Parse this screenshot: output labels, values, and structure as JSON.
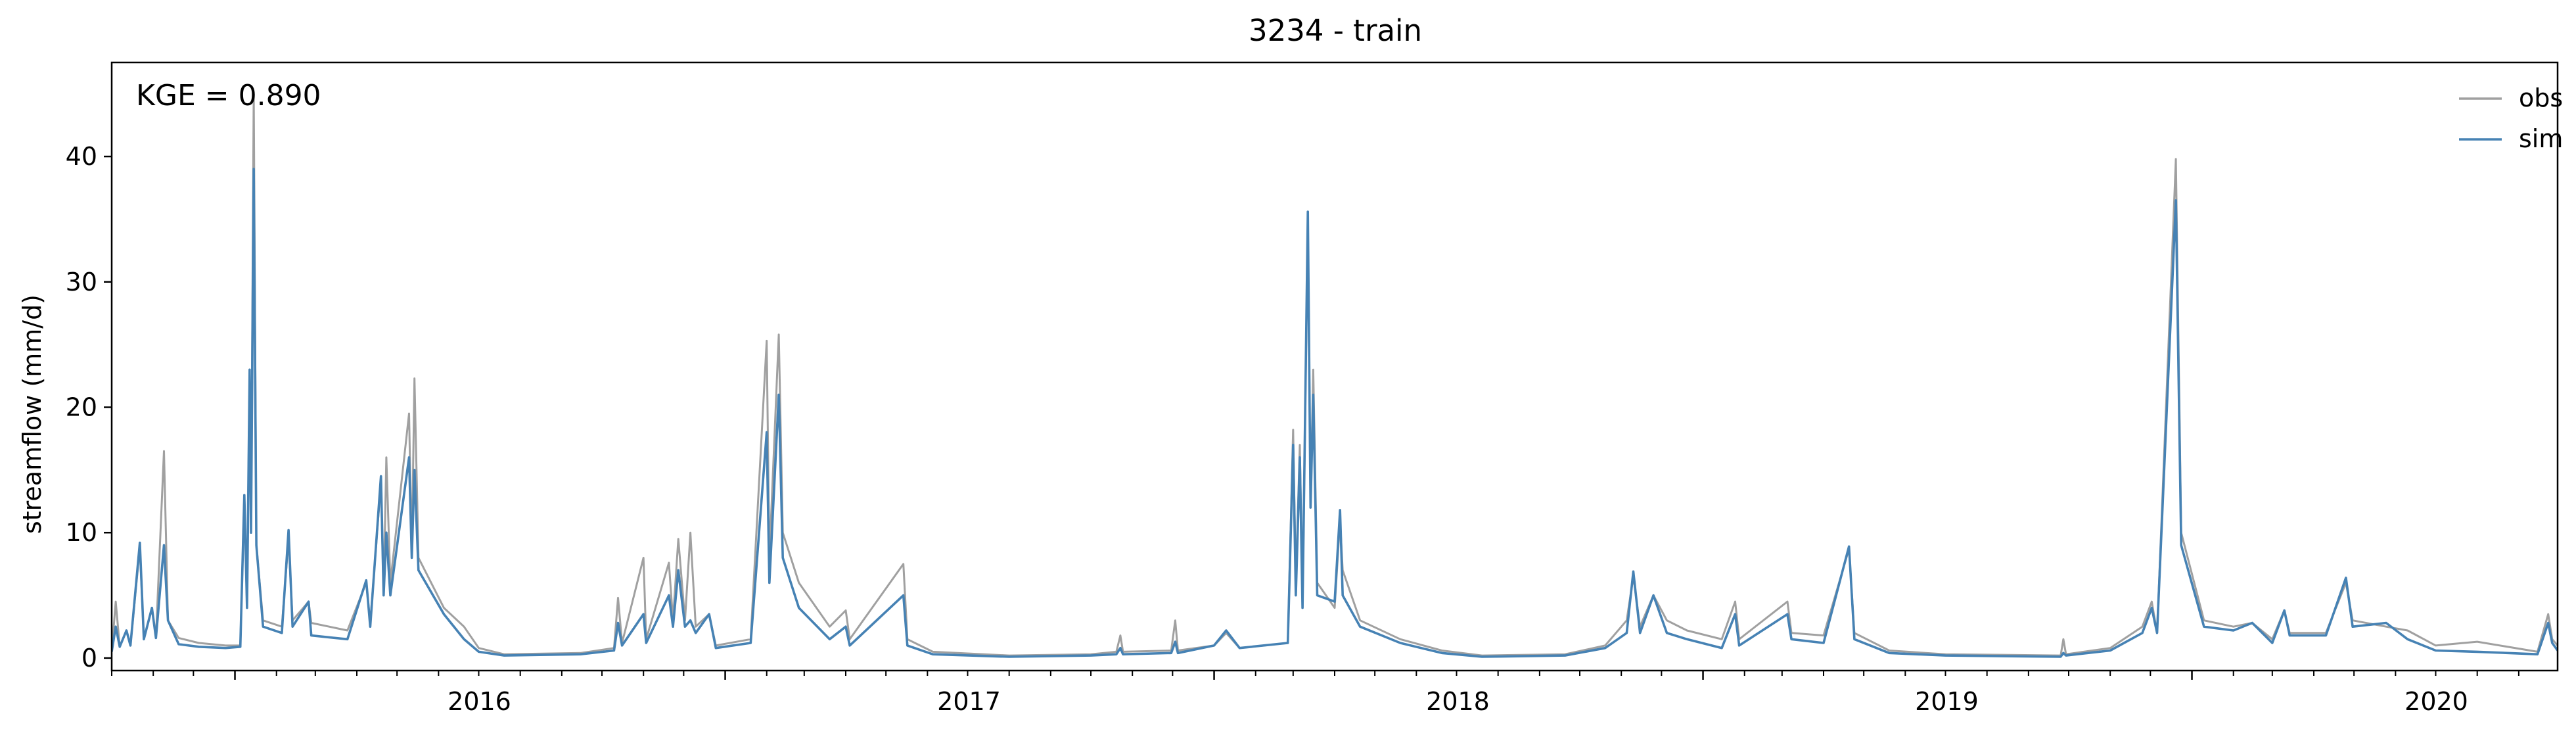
{
  "chart_data": {
    "type": "line",
    "title": "3234 - train",
    "xlabel": "",
    "ylabel": "streamflow (mm/d)",
    "annotation": "KGE = 0.890",
    "xlim": [
      "2015-10-01",
      "2020-09-30"
    ],
    "ylim": [
      -1,
      47.5
    ],
    "x_ticks": [
      "2016",
      "2017",
      "2018",
      "2019",
      "2020"
    ],
    "y_ticks": [
      0,
      10,
      20,
      30,
      40
    ],
    "grid": false,
    "legend": {
      "placement": "top-right",
      "entries": [
        "obs",
        "sim"
      ]
    },
    "colors": {
      "obs": "#a0a0a0",
      "sim": "#4682b4"
    },
    "series": [
      {
        "name": "obs",
        "points": [
          [
            "2015-10-01",
            0.5
          ],
          [
            "2015-10-04",
            4.5
          ],
          [
            "2015-10-07",
            0.9
          ],
          [
            "2015-10-12",
            2.2
          ],
          [
            "2015-10-15",
            1.0
          ],
          [
            "2015-10-22",
            8.8
          ],
          [
            "2015-10-25",
            1.5
          ],
          [
            "2015-10-31",
            4.0
          ],
          [
            "2015-11-03",
            1.6
          ],
          [
            "2015-11-09",
            16.5
          ],
          [
            "2015-11-12",
            3.0
          ],
          [
            "2015-11-20",
            1.6
          ],
          [
            "2015-12-05",
            1.2
          ],
          [
            "2015-12-25",
            1.0
          ],
          [
            "2016-01-05",
            1.0
          ],
          [
            "2016-01-08",
            13.0
          ],
          [
            "2016-01-10",
            4.0
          ],
          [
            "2016-01-12",
            23.0
          ],
          [
            "2016-01-13",
            10.0
          ],
          [
            "2016-01-15",
            45.0
          ],
          [
            "2016-01-17",
            9.0
          ],
          [
            "2016-01-22",
            3.0
          ],
          [
            "2016-02-05",
            2.5
          ],
          [
            "2016-02-10",
            9.5
          ],
          [
            "2016-02-13",
            3.0
          ],
          [
            "2016-02-25",
            4.5
          ],
          [
            "2016-02-27",
            2.8
          ],
          [
            "2016-03-25",
            2.2
          ],
          [
            "2016-04-08",
            6.0
          ],
          [
            "2016-04-11",
            2.8
          ],
          [
            "2016-04-19",
            14.0
          ],
          [
            "2016-04-21",
            5.0
          ],
          [
            "2016-04-23",
            16.0
          ],
          [
            "2016-04-26",
            6.0
          ],
          [
            "2016-05-10",
            19.5
          ],
          [
            "2016-05-12",
            8.0
          ],
          [
            "2016-05-14",
            22.3
          ],
          [
            "2016-05-17",
            8.0
          ],
          [
            "2016-06-05",
            4.0
          ],
          [
            "2016-06-20",
            2.5
          ],
          [
            "2016-07-01",
            0.8
          ],
          [
            "2016-07-20",
            0.3
          ],
          [
            "2016-09-15",
            0.4
          ],
          [
            "2016-10-10",
            0.8
          ],
          [
            "2016-10-13",
            4.8
          ],
          [
            "2016-10-16",
            1.2
          ],
          [
            "2016-11-01",
            8.0
          ],
          [
            "2016-11-03",
            1.5
          ],
          [
            "2016-11-20",
            7.6
          ],
          [
            "2016-11-23",
            3.0
          ],
          [
            "2016-11-27",
            9.5
          ],
          [
            "2016-12-02",
            3.0
          ],
          [
            "2016-12-06",
            10.0
          ],
          [
            "2016-12-10",
            2.5
          ],
          [
            "2016-12-20",
            3.5
          ],
          [
            "2016-12-25",
            1.0
          ],
          [
            "2017-01-20",
            1.5
          ],
          [
            "2017-02-01",
            25.3
          ],
          [
            "2017-02-03",
            8.0
          ],
          [
            "2017-02-10",
            25.8
          ],
          [
            "2017-02-13",
            10.0
          ],
          [
            "2017-02-25",
            6.0
          ],
          [
            "2017-03-20",
            2.5
          ],
          [
            "2017-04-01",
            3.8
          ],
          [
            "2017-04-04",
            1.5
          ],
          [
            "2017-05-14",
            7.5
          ],
          [
            "2017-05-17",
            1.5
          ],
          [
            "2017-06-05",
            0.5
          ],
          [
            "2017-08-01",
            0.2
          ],
          [
            "2017-10-01",
            0.3
          ],
          [
            "2017-10-20",
            0.5
          ],
          [
            "2017-10-23",
            1.8
          ],
          [
            "2017-10-25",
            0.5
          ],
          [
            "2017-11-30",
            0.6
          ],
          [
            "2017-12-03",
            3.0
          ],
          [
            "2017-12-05",
            0.6
          ],
          [
            "2018-01-01",
            1.0
          ],
          [
            "2018-01-10",
            2.0
          ],
          [
            "2018-01-20",
            0.8
          ],
          [
            "2018-02-25",
            1.2
          ],
          [
            "2018-03-01",
            18.2
          ],
          [
            "2018-03-03",
            6.0
          ],
          [
            "2018-03-06",
            17.0
          ],
          [
            "2018-03-08",
            4.0
          ],
          [
            "2018-03-12",
            35.0
          ],
          [
            "2018-03-14",
            12.0
          ],
          [
            "2018-03-16",
            23.0
          ],
          [
            "2018-03-19",
            6.0
          ],
          [
            "2018-04-01",
            4.0
          ],
          [
            "2018-04-05",
            11.0
          ],
          [
            "2018-04-07",
            7.0
          ],
          [
            "2018-04-20",
            3.0
          ],
          [
            "2018-05-20",
            1.5
          ],
          [
            "2018-06-20",
            0.6
          ],
          [
            "2018-07-20",
            0.2
          ],
          [
            "2018-09-20",
            0.3
          ],
          [
            "2018-10-20",
            1.0
          ],
          [
            "2018-11-05",
            3.0
          ],
          [
            "2018-11-10",
            6.5
          ],
          [
            "2018-11-15",
            2.5
          ],
          [
            "2018-11-25",
            5.0
          ],
          [
            "2018-12-05",
            3.0
          ],
          [
            "2018-12-20",
            2.2
          ],
          [
            "2019-01-15",
            1.5
          ],
          [
            "2019-01-25",
            4.5
          ],
          [
            "2019-01-28",
            1.5
          ],
          [
            "2019-03-05",
            4.5
          ],
          [
            "2019-03-08",
            2.0
          ],
          [
            "2019-04-01",
            1.8
          ],
          [
            "2019-04-20",
            8.7
          ],
          [
            "2019-04-24",
            2.0
          ],
          [
            "2019-05-20",
            0.6
          ],
          [
            "2019-07-01",
            0.3
          ],
          [
            "2019-09-25",
            0.2
          ],
          [
            "2019-09-27",
            1.5
          ],
          [
            "2019-09-29",
            0.3
          ],
          [
            "2019-11-01",
            0.8
          ],
          [
            "2019-11-25",
            2.5
          ],
          [
            "2019-12-02",
            4.5
          ],
          [
            "2019-12-06",
            2.0
          ],
          [
            "2019-12-20",
            39.8
          ],
          [
            "2019-12-24",
            10.0
          ],
          [
            "2020-01-10",
            3.0
          ],
          [
            "2020-02-01",
            2.5
          ],
          [
            "2020-02-15",
            2.8
          ],
          [
            "2020-03-01",
            1.5
          ],
          [
            "2020-03-10",
            3.8
          ],
          [
            "2020-03-14",
            2.0
          ],
          [
            "2020-04-10",
            2.0
          ],
          [
            "2020-04-25",
            6.0
          ],
          [
            "2020-04-30",
            3.0
          ],
          [
            "2020-05-25",
            2.5
          ],
          [
            "2020-06-10",
            2.2
          ],
          [
            "2020-07-01",
            1.0
          ],
          [
            "2020-08-01",
            1.3
          ],
          [
            "2020-09-15",
            0.5
          ],
          [
            "2020-09-23",
            3.5
          ],
          [
            "2020-09-26",
            1.5
          ],
          [
            "2020-09-30",
            1.0
          ]
        ]
      },
      {
        "name": "sim",
        "points": [
          [
            "2015-10-01",
            0.5
          ],
          [
            "2015-10-04",
            2.5
          ],
          [
            "2015-10-07",
            0.9
          ],
          [
            "2015-10-12",
            2.2
          ],
          [
            "2015-10-15",
            1.0
          ],
          [
            "2015-10-22",
            9.2
          ],
          [
            "2015-10-25",
            1.5
          ],
          [
            "2015-10-31",
            4.0
          ],
          [
            "2015-11-03",
            1.6
          ],
          [
            "2015-11-09",
            9.0
          ],
          [
            "2015-11-12",
            3.0
          ],
          [
            "2015-11-20",
            1.1
          ],
          [
            "2015-12-05",
            0.9
          ],
          [
            "2015-12-25",
            0.8
          ],
          [
            "2016-01-05",
            0.9
          ],
          [
            "2016-01-08",
            13.0
          ],
          [
            "2016-01-10",
            4.0
          ],
          [
            "2016-01-12",
            23.0
          ],
          [
            "2016-01-13",
            10.0
          ],
          [
            "2016-01-15",
            39.0
          ],
          [
            "2016-01-17",
            9.0
          ],
          [
            "2016-01-22",
            2.5
          ],
          [
            "2016-02-05",
            2.0
          ],
          [
            "2016-02-10",
            10.2
          ],
          [
            "2016-02-13",
            2.5
          ],
          [
            "2016-02-25",
            4.5
          ],
          [
            "2016-02-27",
            1.8
          ],
          [
            "2016-03-25",
            1.5
          ],
          [
            "2016-04-08",
            6.2
          ],
          [
            "2016-04-11",
            2.5
          ],
          [
            "2016-04-19",
            14.5
          ],
          [
            "2016-04-21",
            5.0
          ],
          [
            "2016-04-23",
            10.0
          ],
          [
            "2016-04-26",
            5.0
          ],
          [
            "2016-05-10",
            16.0
          ],
          [
            "2016-05-12",
            8.0
          ],
          [
            "2016-05-14",
            15.0
          ],
          [
            "2016-05-17",
            7.0
          ],
          [
            "2016-06-05",
            3.5
          ],
          [
            "2016-06-20",
            1.5
          ],
          [
            "2016-07-01",
            0.5
          ],
          [
            "2016-07-20",
            0.2
          ],
          [
            "2016-09-15",
            0.3
          ],
          [
            "2016-10-10",
            0.6
          ],
          [
            "2016-10-13",
            2.8
          ],
          [
            "2016-10-16",
            1.0
          ],
          [
            "2016-11-01",
            3.5
          ],
          [
            "2016-11-03",
            1.2
          ],
          [
            "2016-11-20",
            5.0
          ],
          [
            "2016-11-23",
            2.5
          ],
          [
            "2016-11-27",
            7.0
          ],
          [
            "2016-12-02",
            2.5
          ],
          [
            "2016-12-06",
            3.0
          ],
          [
            "2016-12-10",
            2.0
          ],
          [
            "2016-12-20",
            3.5
          ],
          [
            "2016-12-25",
            0.8
          ],
          [
            "2017-01-20",
            1.2
          ],
          [
            "2017-02-01",
            18.0
          ],
          [
            "2017-02-03",
            6.0
          ],
          [
            "2017-02-10",
            21.0
          ],
          [
            "2017-02-13",
            8.0
          ],
          [
            "2017-02-25",
            4.0
          ],
          [
            "2017-03-20",
            1.5
          ],
          [
            "2017-04-01",
            2.5
          ],
          [
            "2017-04-04",
            1.0
          ],
          [
            "2017-05-14",
            5.0
          ],
          [
            "2017-05-17",
            1.0
          ],
          [
            "2017-06-05",
            0.3
          ],
          [
            "2017-08-01",
            0.1
          ],
          [
            "2017-10-01",
            0.2
          ],
          [
            "2017-10-20",
            0.3
          ],
          [
            "2017-10-23",
            0.8
          ],
          [
            "2017-10-25",
            0.3
          ],
          [
            "2017-11-30",
            0.4
          ],
          [
            "2017-12-03",
            1.3
          ],
          [
            "2017-12-05",
            0.4
          ],
          [
            "2018-01-01",
            1.0
          ],
          [
            "2018-01-10",
            2.2
          ],
          [
            "2018-01-20",
            0.8
          ],
          [
            "2018-02-25",
            1.2
          ],
          [
            "2018-03-01",
            17.0
          ],
          [
            "2018-03-03",
            5.0
          ],
          [
            "2018-03-06",
            16.0
          ],
          [
            "2018-03-08",
            4.0
          ],
          [
            "2018-03-12",
            35.6
          ],
          [
            "2018-03-14",
            12.0
          ],
          [
            "2018-03-16",
            21.0
          ],
          [
            "2018-03-19",
            5.0
          ],
          [
            "2018-04-01",
            4.5
          ],
          [
            "2018-04-05",
            11.8
          ],
          [
            "2018-04-07",
            5.0
          ],
          [
            "2018-04-20",
            2.5
          ],
          [
            "2018-05-20",
            1.2
          ],
          [
            "2018-06-20",
            0.4
          ],
          [
            "2018-07-20",
            0.1
          ],
          [
            "2018-09-20",
            0.2
          ],
          [
            "2018-10-20",
            0.8
          ],
          [
            "2018-11-05",
            2.0
          ],
          [
            "2018-11-10",
            6.9
          ],
          [
            "2018-11-15",
            2.0
          ],
          [
            "2018-11-25",
            5.0
          ],
          [
            "2018-12-05",
            2.0
          ],
          [
            "2018-12-20",
            1.5
          ],
          [
            "2019-01-15",
            0.8
          ],
          [
            "2019-01-25",
            3.5
          ],
          [
            "2019-01-28",
            1.0
          ],
          [
            "2019-03-05",
            3.5
          ],
          [
            "2019-03-08",
            1.5
          ],
          [
            "2019-04-01",
            1.2
          ],
          [
            "2019-04-20",
            8.9
          ],
          [
            "2019-04-24",
            1.5
          ],
          [
            "2019-05-20",
            0.4
          ],
          [
            "2019-07-01",
            0.2
          ],
          [
            "2019-09-25",
            0.1
          ],
          [
            "2019-09-27",
            0.4
          ],
          [
            "2019-09-29",
            0.2
          ],
          [
            "2019-11-01",
            0.6
          ],
          [
            "2019-11-25",
            2.0
          ],
          [
            "2019-12-02",
            4.0
          ],
          [
            "2019-12-06",
            2.0
          ],
          [
            "2019-12-20",
            36.5
          ],
          [
            "2019-12-24",
            9.0
          ],
          [
            "2020-01-10",
            2.5
          ],
          [
            "2020-02-01",
            2.2
          ],
          [
            "2020-02-15",
            2.8
          ],
          [
            "2020-03-01",
            1.2
          ],
          [
            "2020-03-10",
            3.8
          ],
          [
            "2020-03-14",
            1.8
          ],
          [
            "2020-04-10",
            1.8
          ],
          [
            "2020-04-25",
            6.4
          ],
          [
            "2020-04-30",
            2.5
          ],
          [
            "2020-05-25",
            2.8
          ],
          [
            "2020-06-10",
            1.5
          ],
          [
            "2020-07-01",
            0.6
          ],
          [
            "2020-08-01",
            0.5
          ],
          [
            "2020-09-15",
            0.3
          ],
          [
            "2020-09-23",
            2.8
          ],
          [
            "2020-09-26",
            1.2
          ],
          [
            "2020-09-30",
            0.6
          ]
        ]
      }
    ]
  }
}
